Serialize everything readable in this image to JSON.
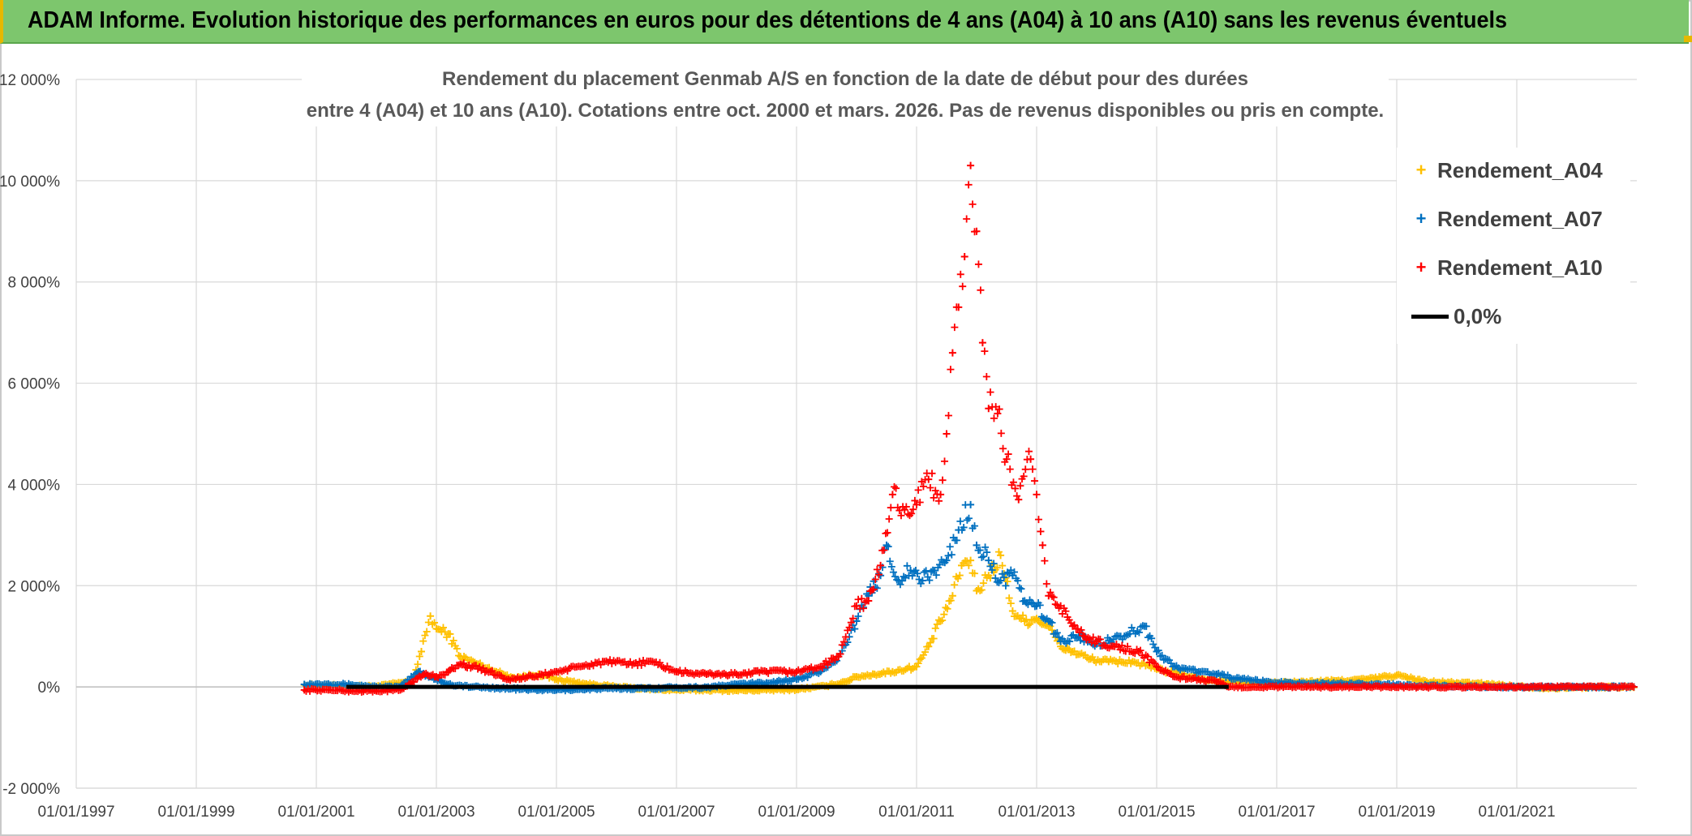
{
  "header": {
    "title": "ADAM Informe. Evolution historique des performances en euros pour des détentions de 4 ans (A04) à 10 ans (A10) sans les revenus éventuels"
  },
  "chart_data": {
    "type": "scatter",
    "title_line1": "Rendement du placement Genmab A/S en fonction de la date de début pour des durées",
    "title_line2": "entre 4 (A04) et 10 ans (A10). Cotations entre oct. 2000 et mars. 2026. Pas de revenus disponibles ou pris en compte.",
    "xlabel": "",
    "ylabel": "",
    "ylim": [
      -2000,
      12000
    ],
    "xlim": [
      1997.0,
      2023.0
    ],
    "x_tick_labels": [
      "01/01/1997",
      "01/01/1999",
      "01/01/2001",
      "01/01/2003",
      "01/01/2005",
      "01/01/2007",
      "01/01/2009",
      "01/01/2011",
      "01/01/2013",
      "01/01/2015",
      "01/01/2017",
      "01/01/2019",
      "01/01/2021"
    ],
    "x_tick_values": [
      1997,
      1999,
      2001,
      2003,
      2005,
      2007,
      2009,
      2011,
      2013,
      2015,
      2017,
      2019,
      2021
    ],
    "y_tick_labels": [
      "-2 000%",
      "0%",
      "2 000%",
      "4 000%",
      "6 000%",
      "8 000%",
      "10 000%",
      "12 000%"
    ],
    "y_tick_values": [
      -2000,
      0,
      2000,
      4000,
      6000,
      8000,
      10000,
      12000
    ],
    "legend_position": "right",
    "series": [
      {
        "name": "Rendement_A04",
        "color": "#ffc000",
        "marker": "+",
        "points": [
          [
            2000.8,
            40
          ],
          [
            2001.2,
            30
          ],
          [
            2001.6,
            20
          ],
          [
            2002.0,
            10
          ],
          [
            2002.4,
            80
          ],
          [
            2002.6,
            100
          ],
          [
            2002.75,
            700
          ],
          [
            2002.9,
            1400
          ],
          [
            2003.0,
            1150
          ],
          [
            2003.2,
            1050
          ],
          [
            2003.4,
            600
          ],
          [
            2003.7,
            450
          ],
          [
            2004.0,
            300
          ],
          [
            2004.3,
            180
          ],
          [
            2004.7,
            250
          ],
          [
            2005.0,
            150
          ],
          [
            2005.5,
            60
          ],
          [
            2006.0,
            0
          ],
          [
            2006.5,
            -40
          ],
          [
            2007.0,
            -60
          ],
          [
            2007.5,
            -60
          ],
          [
            2008.0,
            -70
          ],
          [
            2008.5,
            -60
          ],
          [
            2009.0,
            -50
          ],
          [
            2009.5,
            20
          ],
          [
            2009.8,
            100
          ],
          [
            2010.0,
            200
          ],
          [
            2010.3,
            250
          ],
          [
            2010.6,
            300
          ],
          [
            2011.0,
            400
          ],
          [
            2011.2,
            800
          ],
          [
            2011.4,
            1300
          ],
          [
            2011.6,
            1800
          ],
          [
            2011.75,
            2400
          ],
          [
            2011.9,
            2500
          ],
          [
            2012.0,
            1900
          ],
          [
            2012.2,
            2200
          ],
          [
            2012.4,
            2600
          ],
          [
            2012.6,
            1500
          ],
          [
            2012.8,
            1300
          ],
          [
            2013.0,
            1350
          ],
          [
            2013.2,
            1200
          ],
          [
            2013.4,
            800
          ],
          [
            2013.6,
            700
          ],
          [
            2013.9,
            550
          ],
          [
            2014.2,
            500
          ],
          [
            2014.6,
            500
          ],
          [
            2015.0,
            350
          ],
          [
            2015.4,
            250
          ],
          [
            2015.8,
            150
          ],
          [
            2016.2,
            100
          ],
          [
            2016.6,
            60
          ],
          [
            2017.0,
            80
          ],
          [
            2017.5,
            100
          ],
          [
            2018.0,
            120
          ],
          [
            2018.5,
            150
          ],
          [
            2019.0,
            230
          ],
          [
            2019.5,
            100
          ],
          [
            2020.0,
            80
          ],
          [
            2020.5,
            60
          ],
          [
            2021.0,
            10
          ],
          [
            2021.5,
            -20
          ],
          [
            2022.0,
            -10
          ],
          [
            2022.5,
            0
          ],
          [
            2022.95,
            -10
          ]
        ]
      },
      {
        "name": "Rendement_A07",
        "color": "#0070c0",
        "marker": "+",
        "points": [
          [
            2000.8,
            50
          ],
          [
            2001.2,
            60
          ],
          [
            2001.6,
            40
          ],
          [
            2002.0,
            0
          ],
          [
            2002.4,
            0
          ],
          [
            2002.7,
            300
          ],
          [
            2002.9,
            200
          ],
          [
            2003.2,
            50
          ],
          [
            2003.6,
            0
          ],
          [
            2004.0,
            -20
          ],
          [
            2004.5,
            -50
          ],
          [
            2005.0,
            -60
          ],
          [
            2005.5,
            -40
          ],
          [
            2006.0,
            -30
          ],
          [
            2006.5,
            -30
          ],
          [
            2007.0,
            -10
          ],
          [
            2007.5,
            -10
          ],
          [
            2008.0,
            50
          ],
          [
            2008.5,
            80
          ],
          [
            2009.0,
            150
          ],
          [
            2009.4,
            300
          ],
          [
            2009.7,
            600
          ],
          [
            2010.0,
            1300
          ],
          [
            2010.2,
            1800
          ],
          [
            2010.4,
            2200
          ],
          [
            2010.5,
            2800
          ],
          [
            2010.7,
            2100
          ],
          [
            2010.9,
            2300
          ],
          [
            2011.1,
            2100
          ],
          [
            2011.3,
            2300
          ],
          [
            2011.5,
            2500
          ],
          [
            2011.7,
            3100
          ],
          [
            2011.9,
            3600
          ],
          [
            2012.0,
            2800
          ],
          [
            2012.2,
            2500
          ],
          [
            2012.4,
            2100
          ],
          [
            2012.6,
            2200
          ],
          [
            2012.8,
            1700
          ],
          [
            2013.0,
            1600
          ],
          [
            2013.2,
            1300
          ],
          [
            2013.4,
            900
          ],
          [
            2013.7,
            1000
          ],
          [
            2014.0,
            850
          ],
          [
            2014.4,
            1000
          ],
          [
            2014.8,
            1200
          ],
          [
            2015.0,
            700
          ],
          [
            2015.3,
            400
          ],
          [
            2015.7,
            300
          ],
          [
            2016.0,
            250
          ],
          [
            2016.4,
            150
          ],
          [
            2016.8,
            100
          ],
          [
            2017.2,
            80
          ],
          [
            2017.8,
            60
          ],
          [
            2018.4,
            60
          ],
          [
            2019.0,
            40
          ],
          [
            2019.5,
            20
          ],
          [
            2020.0,
            10
          ],
          [
            2020.8,
            0
          ],
          [
            2021.6,
            0
          ],
          [
            2022.4,
            0
          ],
          [
            2022.95,
            0
          ]
        ]
      },
      {
        "name": "Rendement_A10",
        "color": "#ff0000",
        "marker": "+",
        "points": [
          [
            2000.8,
            -60
          ],
          [
            2001.2,
            -60
          ],
          [
            2001.6,
            -80
          ],
          [
            2002.0,
            -80
          ],
          [
            2002.4,
            -60
          ],
          [
            2002.6,
            100
          ],
          [
            2002.8,
            250
          ],
          [
            2003.0,
            200
          ],
          [
            2003.2,
            300
          ],
          [
            2003.4,
            450
          ],
          [
            2003.6,
            400
          ],
          [
            2003.9,
            300
          ],
          [
            2004.2,
            150
          ],
          [
            2004.6,
            200
          ],
          [
            2005.0,
            300
          ],
          [
            2005.4,
            400
          ],
          [
            2005.8,
            500
          ],
          [
            2006.2,
            450
          ],
          [
            2006.6,
            500
          ],
          [
            2007.0,
            300
          ],
          [
            2007.5,
            250
          ],
          [
            2008.0,
            250
          ],
          [
            2008.5,
            300
          ],
          [
            2009.0,
            300
          ],
          [
            2009.4,
            400
          ],
          [
            2009.7,
            600
          ],
          [
            2010.0,
            1600
          ],
          [
            2010.2,
            1700
          ],
          [
            2010.4,
            2400
          ],
          [
            2010.6,
            3800
          ],
          [
            2010.8,
            3500
          ],
          [
            2011.0,
            3600
          ],
          [
            2011.2,
            4100
          ],
          [
            2011.4,
            3800
          ],
          [
            2011.5,
            5000
          ],
          [
            2011.6,
            6600
          ],
          [
            2011.7,
            7500
          ],
          [
            2011.8,
            8500
          ],
          [
            2011.9,
            10300
          ],
          [
            2012.0,
            9000
          ],
          [
            2012.1,
            6800
          ],
          [
            2012.2,
            5500
          ],
          [
            2012.35,
            5400
          ],
          [
            2012.5,
            4500
          ],
          [
            2012.7,
            3700
          ],
          [
            2012.9,
            4500
          ],
          [
            2013.0,
            3800
          ],
          [
            2013.1,
            2800
          ],
          [
            2013.2,
            1800
          ],
          [
            2013.4,
            1600
          ],
          [
            2013.6,
            1200
          ],
          [
            2013.8,
            1000
          ],
          [
            2014.0,
            900
          ],
          [
            2014.3,
            800
          ],
          [
            2014.7,
            700
          ],
          [
            2015.0,
            400
          ],
          [
            2015.3,
            200
          ],
          [
            2015.7,
            150
          ],
          [
            2016.0,
            100
          ],
          [
            2016.2,
            0
          ],
          [
            2016.6,
            0
          ],
          [
            2017.5,
            0
          ],
          [
            2018.5,
            0
          ],
          [
            2019.5,
            0
          ],
          [
            2020.5,
            0
          ],
          [
            2021.5,
            0
          ],
          [
            2022.5,
            0
          ],
          [
            2022.95,
            0
          ]
        ]
      },
      {
        "name": "0,0%",
        "color": "#000000",
        "marker": "line",
        "points": [
          [
            2001.5,
            0
          ],
          [
            2016.2,
            0
          ]
        ]
      }
    ]
  }
}
